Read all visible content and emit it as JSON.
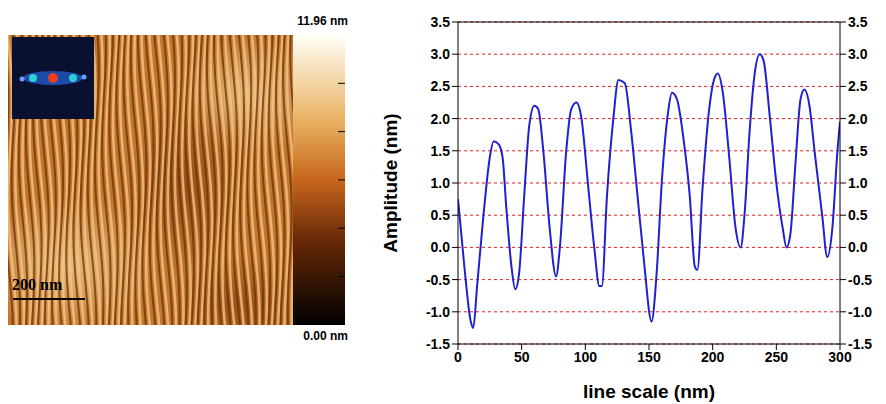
{
  "image": {
    "colorbar_labels": [
      "11.96 nm",
      "0.00 nm"
    ],
    "scale_bar_label": "200 nm"
  },
  "chart_data": {
    "type": "line",
    "x_label": "line scale (nm)",
    "y_label": "Amplitude (nm)",
    "color": "#2020d0",
    "grid": true,
    "x": [
      0,
      5,
      10,
      12,
      15,
      20,
      25,
      28,
      32,
      35,
      38,
      42,
      45,
      48,
      52,
      56,
      60,
      63,
      67,
      72,
      77,
      80,
      85,
      89,
      93,
      97,
      102,
      107,
      111,
      113,
      117,
      122,
      126,
      131,
      136,
      141,
      146,
      152,
      156,
      160,
      165,
      168,
      172,
      177,
      182,
      186,
      188,
      192,
      197,
      201,
      204,
      208,
      213,
      218,
      222,
      225,
      229,
      233,
      237,
      240,
      245,
      250,
      255,
      258,
      261,
      265,
      269,
      272,
      276,
      280,
      286,
      290,
      294,
      298,
      300
    ],
    "values": [
      0.75,
      -0.3,
      -1.15,
      -1.25,
      -0.6,
      0.5,
      1.4,
      1.65,
      1.6,
      1.4,
      0.6,
      -0.3,
      -0.65,
      -0.4,
      0.8,
      1.9,
      2.2,
      2.15,
      1.5,
      0.3,
      -0.45,
      0.0,
      1.5,
      2.15,
      2.25,
      2.0,
      1.0,
      0.0,
      -0.6,
      -0.6,
      0.8,
      2.0,
      2.6,
      2.55,
      1.8,
      0.8,
      -0.2,
      -1.15,
      -0.4,
      1.0,
      2.1,
      2.4,
      2.3,
      1.7,
      0.8,
      -0.3,
      -0.35,
      0.9,
      2.1,
      2.6,
      2.7,
      2.4,
      1.4,
      0.3,
      0.0,
      0.5,
      1.8,
      2.7,
      3.0,
      2.9,
      2.0,
      1.0,
      0.3,
      0.0,
      0.2,
      1.3,
      2.3,
      2.45,
      2.2,
      1.5,
      0.5,
      -0.15,
      0.3,
      1.5,
      1.95
    ],
    "xlim": [
      0,
      300
    ],
    "xticks": [
      0,
      50,
      100,
      150,
      200,
      250,
      300
    ],
    "ylim": [
      -1.5,
      3.5
    ],
    "yticks": [
      {
        "value": -1.5,
        "label": "-1.5"
      },
      {
        "value": -1.0,
        "label": "-1.0"
      },
      {
        "value": -0.5,
        "label": "-0.5"
      },
      {
        "value": 0,
        "label": "0.0"
      },
      {
        "value": 0.5,
        "label": "0.5"
      },
      {
        "value": 1.0,
        "label": "1.0"
      },
      {
        "value": 1.5,
        "label": "1.5"
      },
      {
        "value": 2.0,
        "label": "2.0"
      },
      {
        "value": 2.5,
        "label": "2.5"
      },
      {
        "value": 3.0,
        "label": "3.0"
      },
      {
        "value": 3.5,
        "label": "3.5"
      }
    ]
  }
}
